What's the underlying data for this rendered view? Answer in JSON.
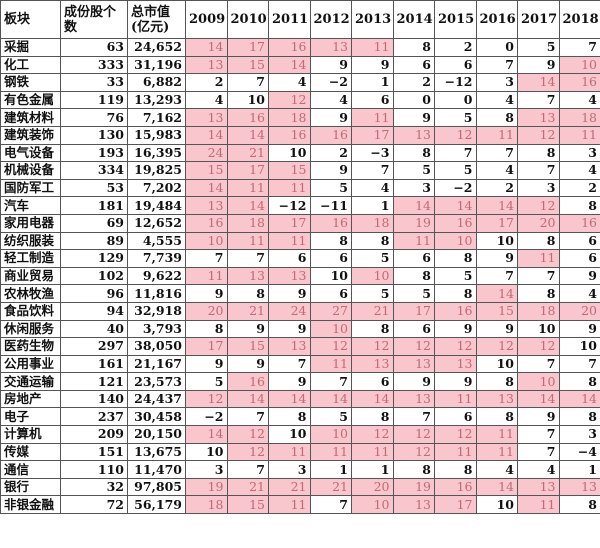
{
  "headers": {
    "sector": "板块",
    "count": "成份股个数",
    "cap": "总市值(亿元)",
    "years": [
      "2009",
      "2010",
      "2011",
      "2012",
      "2013",
      "2014",
      "2015",
      "2016",
      "2017",
      "2018"
    ]
  },
  "colors": {
    "highlight_bg": "#f8c6cc",
    "highlight_text": "#c46a76"
  },
  "rows": [
    {
      "name": "采掘",
      "count": "63",
      "cap": "24,652",
      "v": [
        "14",
        "17",
        "16",
        "13",
        "11",
        "8",
        "2",
        "0",
        "5",
        "7"
      ],
      "hl": [
        1,
        1,
        1,
        1,
        1,
        0,
        0,
        0,
        0,
        0
      ]
    },
    {
      "name": "化工",
      "count": "333",
      "cap": "31,196",
      "v": [
        "13",
        "15",
        "14",
        "9",
        "9",
        "6",
        "6",
        "7",
        "9",
        "10"
      ],
      "hl": [
        1,
        1,
        1,
        0,
        0,
        0,
        0,
        0,
        0,
        1
      ]
    },
    {
      "name": "钢铁",
      "count": "33",
      "cap": "6,882",
      "v": [
        "2",
        "7",
        "4",
        "−2",
        "1",
        "2",
        "−12",
        "3",
        "14",
        "16"
      ],
      "hl": [
        0,
        0,
        0,
        0,
        0,
        0,
        0,
        0,
        1,
        1
      ]
    },
    {
      "name": "有色金属",
      "count": "119",
      "cap": "13,293",
      "v": [
        "4",
        "10",
        "12",
        "4",
        "6",
        "0",
        "0",
        "4",
        "7",
        "4"
      ],
      "hl": [
        0,
        0,
        1,
        0,
        0,
        0,
        0,
        0,
        0,
        0
      ]
    },
    {
      "name": "建筑材料",
      "count": "76",
      "cap": "7,162",
      "v": [
        "13",
        "16",
        "18",
        "9",
        "11",
        "9",
        "5",
        "8",
        "13",
        "18"
      ],
      "hl": [
        1,
        1,
        1,
        0,
        1,
        0,
        0,
        0,
        1,
        1
      ]
    },
    {
      "name": "建筑装饰",
      "count": "130",
      "cap": "15,983",
      "v": [
        "14",
        "14",
        "16",
        "16",
        "17",
        "13",
        "12",
        "11",
        "12",
        "11"
      ],
      "hl": [
        1,
        1,
        1,
        1,
        1,
        1,
        1,
        1,
        1,
        1
      ]
    },
    {
      "name": "电气设备",
      "count": "193",
      "cap": "16,395",
      "v": [
        "24",
        "21",
        "10",
        "2",
        "−3",
        "8",
        "7",
        "7",
        "8",
        "3"
      ],
      "hl": [
        1,
        1,
        0,
        0,
        0,
        0,
        0,
        0,
        0,
        0
      ]
    },
    {
      "name": "机械设备",
      "count": "334",
      "cap": "19,825",
      "v": [
        "15",
        "17",
        "15",
        "9",
        "7",
        "5",
        "5",
        "4",
        "7",
        "4"
      ],
      "hl": [
        1,
        1,
        1,
        0,
        0,
        0,
        0,
        0,
        0,
        0
      ]
    },
    {
      "name": "国防军工",
      "count": "53",
      "cap": "7,202",
      "v": [
        "14",
        "11",
        "11",
        "5",
        "4",
        "3",
        "−2",
        "2",
        "3",
        "2"
      ],
      "hl": [
        1,
        1,
        1,
        0,
        0,
        0,
        0,
        0,
        0,
        0
      ]
    },
    {
      "name": "汽车",
      "count": "181",
      "cap": "19,484",
      "v": [
        "13",
        "14",
        "−12",
        "−11",
        "1",
        "14",
        "14",
        "14",
        "12",
        "8"
      ],
      "hl": [
        1,
        1,
        0,
        0,
        0,
        1,
        1,
        1,
        1,
        0
      ]
    },
    {
      "name": "家用电器",
      "count": "69",
      "cap": "12,652",
      "v": [
        "16",
        "18",
        "17",
        "16",
        "18",
        "19",
        "16",
        "17",
        "20",
        "16"
      ],
      "hl": [
        1,
        1,
        1,
        1,
        1,
        1,
        1,
        1,
        1,
        1
      ]
    },
    {
      "name": "纺织服装",
      "count": "89",
      "cap": "4,555",
      "v": [
        "10",
        "11",
        "11",
        "8",
        "8",
        "11",
        "10",
        "10",
        "8",
        "6"
      ],
      "hl": [
        1,
        1,
        1,
        0,
        0,
        1,
        1,
        0,
        0,
        0
      ]
    },
    {
      "name": "轻工制造",
      "count": "129",
      "cap": "7,739",
      "v": [
        "7",
        "7",
        "6",
        "6",
        "5",
        "6",
        "8",
        "9",
        "11",
        "6"
      ],
      "hl": [
        0,
        0,
        0,
        0,
        0,
        0,
        0,
        0,
        1,
        0
      ]
    },
    {
      "name": "商业贸易",
      "count": "102",
      "cap": "9,622",
      "v": [
        "11",
        "13",
        "13",
        "10",
        "10",
        "8",
        "5",
        "7",
        "7",
        "9"
      ],
      "hl": [
        1,
        1,
        1,
        0,
        1,
        0,
        0,
        0,
        0,
        0
      ]
    },
    {
      "name": "农林牧渔",
      "count": "96",
      "cap": "11,816",
      "v": [
        "9",
        "8",
        "9",
        "6",
        "5",
        "5",
        "8",
        "14",
        "8",
        "4"
      ],
      "hl": [
        0,
        0,
        0,
        0,
        0,
        0,
        0,
        1,
        0,
        0
      ]
    },
    {
      "name": "食品饮料",
      "count": "94",
      "cap": "32,918",
      "v": [
        "20",
        "21",
        "24",
        "27",
        "21",
        "17",
        "16",
        "15",
        "18",
        "20"
      ],
      "hl": [
        1,
        1,
        1,
        1,
        1,
        1,
        1,
        1,
        1,
        1
      ]
    },
    {
      "name": "休闲服务",
      "count": "40",
      "cap": "3,793",
      "v": [
        "8",
        "9",
        "9",
        "10",
        "8",
        "6",
        "9",
        "9",
        "10",
        "9"
      ],
      "hl": [
        0,
        0,
        0,
        1,
        0,
        0,
        0,
        0,
        0,
        0
      ]
    },
    {
      "name": "医药生物",
      "count": "297",
      "cap": "38,050",
      "v": [
        "17",
        "15",
        "13",
        "12",
        "12",
        "12",
        "12",
        "12",
        "12",
        "10"
      ],
      "hl": [
        1,
        1,
        1,
        1,
        1,
        1,
        1,
        1,
        1,
        0
      ]
    },
    {
      "name": "公用事业",
      "count": "161",
      "cap": "21,167",
      "v": [
        "9",
        "9",
        "7",
        "11",
        "13",
        "13",
        "13",
        "10",
        "7",
        "7"
      ],
      "hl": [
        0,
        0,
        0,
        1,
        1,
        1,
        1,
        0,
        0,
        0
      ]
    },
    {
      "name": "交通运输",
      "count": "121",
      "cap": "23,573",
      "v": [
        "5",
        "16",
        "9",
        "7",
        "6",
        "9",
        "9",
        "8",
        "10",
        "8"
      ],
      "hl": [
        0,
        1,
        0,
        0,
        0,
        0,
        0,
        0,
        1,
        0
      ]
    },
    {
      "name": "房地产",
      "count": "140",
      "cap": "24,437",
      "v": [
        "12",
        "14",
        "14",
        "14",
        "14",
        "13",
        "11",
        "13",
        "14",
        "14"
      ],
      "hl": [
        1,
        1,
        1,
        1,
        1,
        1,
        1,
        1,
        1,
        1
      ]
    },
    {
      "name": "电子",
      "count": "237",
      "cap": "30,458",
      "v": [
        "−2",
        "7",
        "8",
        "5",
        "8",
        "7",
        "6",
        "8",
        "9",
        "8"
      ],
      "hl": [
        0,
        0,
        0,
        0,
        0,
        0,
        0,
        0,
        0,
        0
      ]
    },
    {
      "name": "计算机",
      "count": "209",
      "cap": "20,150",
      "v": [
        "14",
        "12",
        "10",
        "10",
        "12",
        "12",
        "12",
        "11",
        "7",
        "3"
      ],
      "hl": [
        1,
        1,
        0,
        1,
        1,
        1,
        1,
        1,
        0,
        0
      ]
    },
    {
      "name": "传媒",
      "count": "151",
      "cap": "13,675",
      "v": [
        "10",
        "12",
        "11",
        "11",
        "11",
        "12",
        "11",
        "11",
        "7",
        "−4"
      ],
      "hl": [
        0,
        1,
        1,
        1,
        1,
        1,
        1,
        1,
        0,
        0
      ]
    },
    {
      "name": "通信",
      "count": "110",
      "cap": "11,470",
      "v": [
        "3",
        "7",
        "3",
        "1",
        "1",
        "8",
        "8",
        "4",
        "4",
        "1"
      ],
      "hl": [
        0,
        0,
        0,
        0,
        0,
        0,
        0,
        0,
        0,
        0
      ]
    },
    {
      "name": "银行",
      "count": "32",
      "cap": "97,805",
      "v": [
        "19",
        "21",
        "21",
        "21",
        "20",
        "19",
        "16",
        "14",
        "13",
        "13"
      ],
      "hl": [
        1,
        1,
        1,
        1,
        1,
        1,
        1,
        1,
        1,
        1
      ]
    },
    {
      "name": "非银金融",
      "count": "72",
      "cap": "56,179",
      "v": [
        "18",
        "15",
        "11",
        "7",
        "10",
        "13",
        "17",
        "10",
        "11",
        "8"
      ],
      "hl": [
        1,
        1,
        1,
        0,
        1,
        1,
        1,
        0,
        1,
        0
      ]
    }
  ]
}
